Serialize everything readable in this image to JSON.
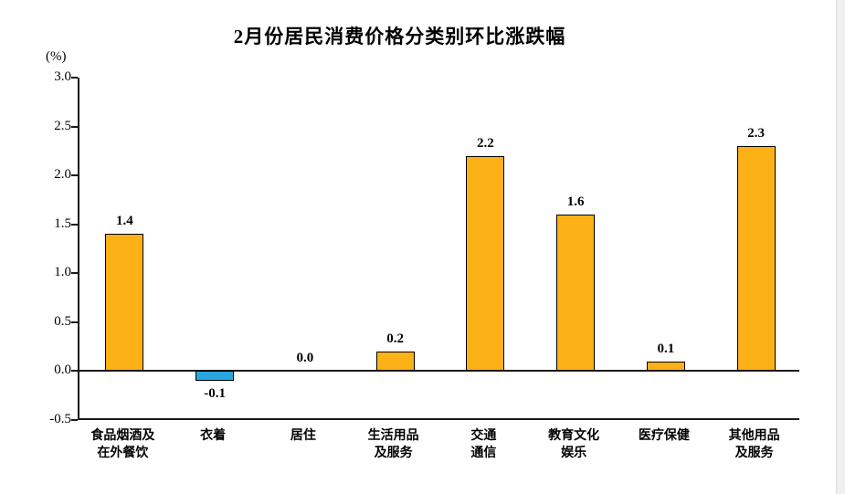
{
  "chart_data": {
    "type": "bar",
    "title": "2月份居民消费价格分类别环比涨跌幅",
    "ylabel": "(%)",
    "xlabel": "",
    "ylim": [
      -0.5,
      3.0
    ],
    "ytick_step": 0.5,
    "yticks": [
      3.0,
      2.5,
      2.0,
      1.5,
      1.0,
      0.5,
      0.0,
      -0.5
    ],
    "ytick_labels": [
      "3.0",
      "2.5",
      "2.0",
      "1.5",
      "1.0",
      "0.5",
      "0.0",
      "-0.5"
    ],
    "categories": [
      {
        "lines": [
          "食品烟酒及",
          "在外餐饮"
        ]
      },
      {
        "lines": [
          "衣着"
        ]
      },
      {
        "lines": [
          "居住"
        ]
      },
      {
        "lines": [
          "生活用品",
          "及服务"
        ]
      },
      {
        "lines": [
          "交通",
          "通信"
        ]
      },
      {
        "lines": [
          "教育文化",
          "娱乐"
        ]
      },
      {
        "lines": [
          "医疗保健"
        ]
      },
      {
        "lines": [
          "其他用品",
          "及服务"
        ]
      }
    ],
    "values": [
      1.4,
      -0.1,
      0.0,
      0.2,
      2.2,
      1.6,
      0.1,
      2.3
    ],
    "value_labels": [
      "1.4",
      "-0.1",
      "0.0",
      "0.2",
      "2.2",
      "1.6",
      "0.1",
      "2.3"
    ],
    "colors": {
      "positive_bar": "#FCB116",
      "negative_bar": "#29A8E0",
      "bar_border": "#000000",
      "axis": "#1a1a1a",
      "text": "#000000"
    },
    "grid": false,
    "legend": false
  }
}
